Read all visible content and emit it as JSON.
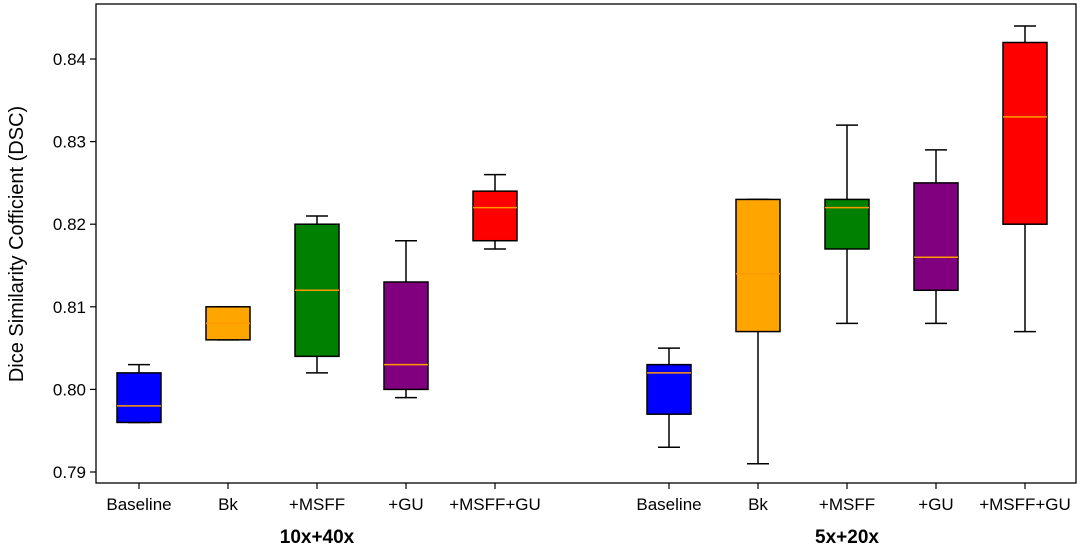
{
  "chart_data": {
    "type": "box",
    "ylabel": "Dice Similarity Cofficient (DSC)",
    "ylim": [
      0.7885,
      0.8465
    ],
    "yticks": [
      0.79,
      0.8,
      0.81,
      0.82,
      0.83,
      0.84
    ],
    "ytick_labels": [
      "0.79",
      "0.80",
      "0.81",
      "0.82",
      "0.83",
      "0.84"
    ],
    "median_color": "#ff9900",
    "groups": [
      {
        "label": "10x+40x",
        "boxes": [
          {
            "label": "Baseline",
            "color": "#0000ff",
            "whisker_low": 0.796,
            "q1": 0.796,
            "median": 0.798,
            "q3": 0.802,
            "whisker_high": 0.803
          },
          {
            "label": "Bk",
            "color": "#ffa500",
            "whisker_low": 0.806,
            "q1": 0.806,
            "median": 0.808,
            "q3": 0.81,
            "whisker_high": 0.81
          },
          {
            "label": "+MSFF",
            "color": "#008000",
            "whisker_low": 0.802,
            "q1": 0.804,
            "median": 0.812,
            "q3": 0.82,
            "whisker_high": 0.821
          },
          {
            "label": "+GU",
            "color": "#800080",
            "whisker_low": 0.799,
            "q1": 0.8,
            "median": 0.803,
            "q3": 0.813,
            "whisker_high": 0.818
          },
          {
            "label": "+MSFF+GU",
            "color": "#ff0000",
            "whisker_low": 0.817,
            "q1": 0.818,
            "median": 0.822,
            "q3": 0.824,
            "whisker_high": 0.826
          }
        ]
      },
      {
        "label": "5x+20x",
        "boxes": [
          {
            "label": "Baseline",
            "color": "#0000ff",
            "whisker_low": 0.793,
            "q1": 0.797,
            "median": 0.802,
            "q3": 0.803,
            "whisker_high": 0.805
          },
          {
            "label": "Bk",
            "color": "#ffa500",
            "whisker_low": 0.791,
            "q1": 0.807,
            "median": 0.814,
            "q3": 0.823,
            "whisker_high": 0.823
          },
          {
            "label": "+MSFF",
            "color": "#008000",
            "whisker_low": 0.808,
            "q1": 0.817,
            "median": 0.822,
            "q3": 0.823,
            "whisker_high": 0.832
          },
          {
            "label": "+GU",
            "color": "#800080",
            "whisker_low": 0.808,
            "q1": 0.812,
            "median": 0.816,
            "q3": 0.825,
            "whisker_high": 0.829
          },
          {
            "label": "+MSFF+GU",
            "color": "#ff0000",
            "whisker_low": 0.807,
            "q1": 0.82,
            "median": 0.833,
            "q3": 0.842,
            "whisker_high": 0.844
          }
        ]
      }
    ]
  }
}
